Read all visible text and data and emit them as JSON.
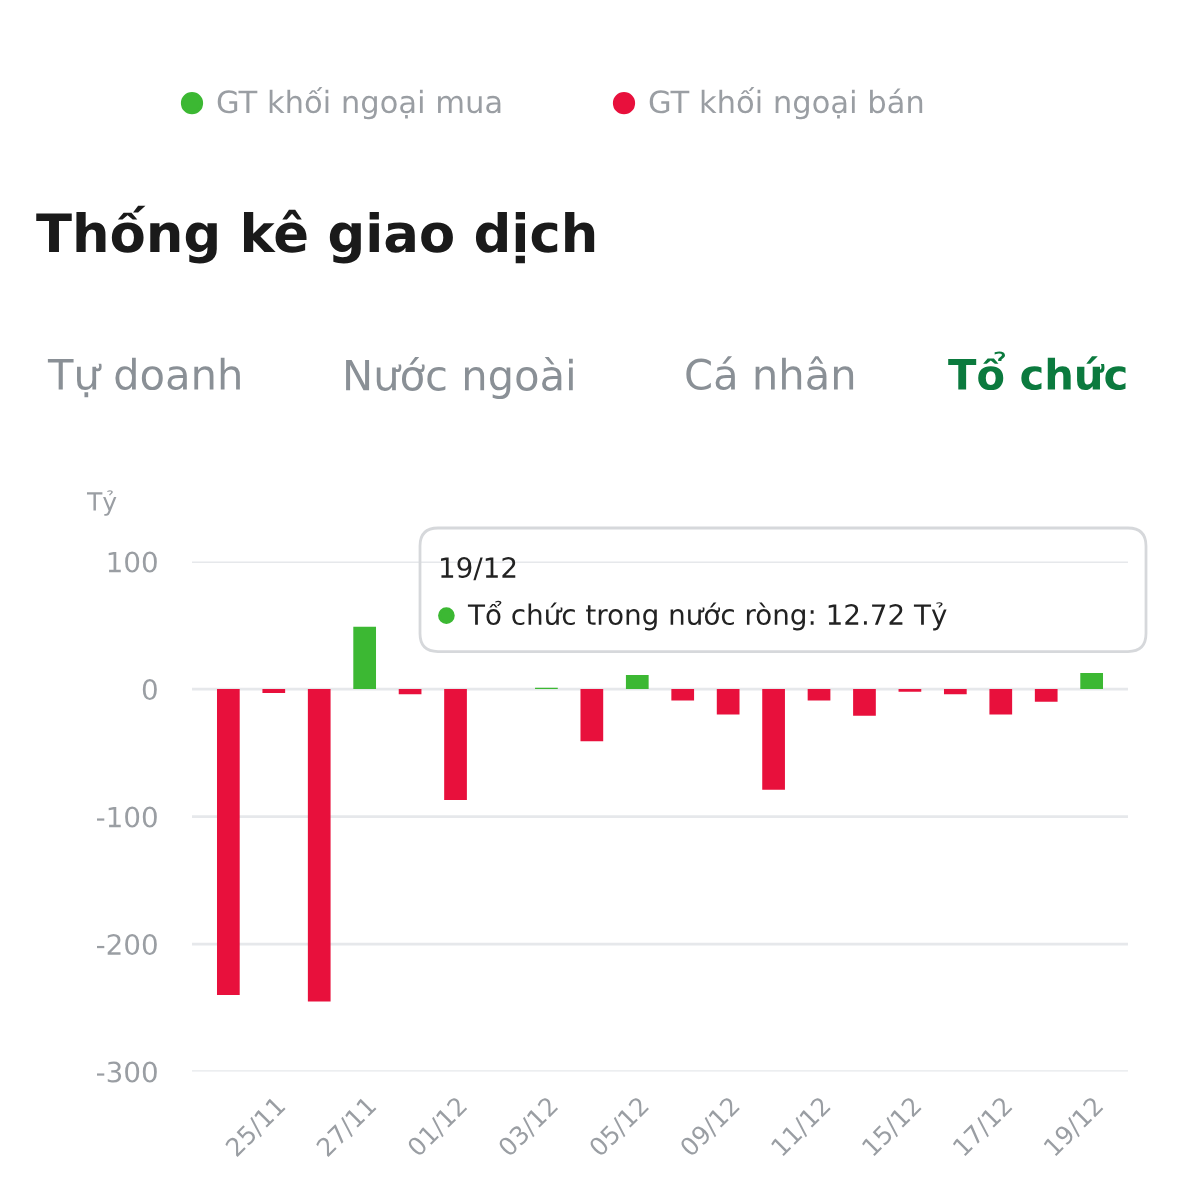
{
  "chart_data": {
    "type": "bar",
    "title": "Thống kê giao dịch",
    "ylabel": "Tỷ",
    "categories": [
      null,
      "25/11",
      null,
      "27/11",
      null,
      "01/12",
      null,
      "03/12",
      null,
      "05/12",
      null,
      "09/12",
      null,
      "11/12",
      null,
      "15/12",
      null,
      "17/12",
      null,
      "19/12"
    ],
    "values": [
      -240,
      -3,
      -245,
      49,
      -4,
      -87,
      0,
      1,
      -41,
      11,
      -9,
      -20,
      -79,
      -9,
      -21,
      -2,
      -4,
      -20,
      -10,
      12.72
    ],
    "colors": [
      "#e8103c",
      "#e8103c",
      "#e8103c",
      "#3cb833",
      "#e8103c",
      "#e8103c",
      "#e8103c",
      "#3cb833",
      "#e8103c",
      "#3cb833",
      "#e8103c",
      "#e8103c",
      "#e8103c",
      "#e8103c",
      "#e8103c",
      "#e8103c",
      "#e8103c",
      "#e8103c",
      "#e8103c",
      "#3cb833"
    ],
    "ylim": [
      -300,
      100
    ],
    "yticks": [
      -300,
      -200,
      -100,
      0,
      100
    ],
    "grid": "y",
    "annotations": [
      "GT khối ngoại mua",
      "GT khối ngoại bán",
      "Tự doanh",
      "Nước ngoài",
      "Cá nhân",
      "Tổ chức",
      "19/12",
      "Tổ chức trong nước ròng: 12.72 Tỷ"
    ]
  }
}
